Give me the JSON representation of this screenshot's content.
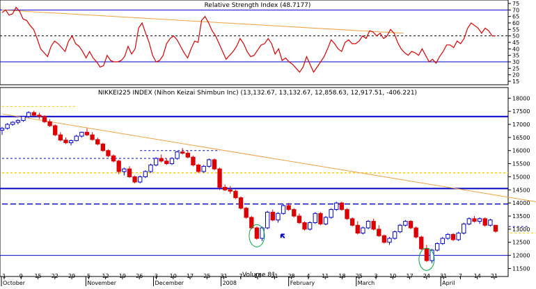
{
  "chart_data": [
    {
      "type": "line",
      "title": "Relative Strength Index (48.7177)",
      "ylim": [
        15,
        75
      ],
      "y_ticks": [
        15,
        20,
        25,
        30,
        35,
        40,
        45,
        50,
        55,
        60,
        65,
        70,
        75
      ],
      "ref_lines": [
        30,
        50,
        70
      ],
      "colors": {
        "series": "#dd0000",
        "ref_solid": "#0000cc",
        "ref_dashed": "#000000",
        "trend": "#f0a040"
      },
      "series": [
        {
          "values": [
            68,
            70,
            66,
            67,
            72,
            69,
            63,
            62,
            58,
            55,
            48,
            40,
            37,
            34,
            42,
            46,
            44,
            41,
            38,
            46,
            50,
            44,
            42,
            38,
            33,
            38,
            33,
            30,
            26,
            27,
            35,
            31,
            30,
            30,
            31,
            34,
            42,
            36,
            40,
            56,
            60,
            52,
            45,
            35,
            30,
            31,
            35,
            44,
            48,
            50,
            47,
            42,
            37,
            33,
            40,
            46,
            45,
            62,
            65,
            60,
            54,
            50,
            44,
            38,
            32,
            35,
            38,
            42,
            48,
            44,
            38,
            34,
            35,
            39,
            43,
            44,
            48,
            44,
            36,
            40,
            31,
            33,
            30,
            28,
            25,
            22,
            26,
            34,
            28,
            22,
            26,
            30,
            34,
            40,
            47,
            44,
            40,
            38,
            45,
            47,
            44,
            44,
            46,
            50,
            48,
            54,
            53,
            50,
            52,
            48,
            50,
            55,
            52,
            45,
            40,
            37,
            35,
            38,
            37,
            35,
            40,
            35,
            30,
            32,
            29,
            34,
            38,
            43,
            43,
            41,
            46,
            44,
            48,
            56,
            60,
            58,
            56,
            52,
            56,
            54,
            50,
            50
          ]
        }
      ],
      "trend_line": {
        "from": [
          0,
          70
        ],
        "to": [
          140,
          52
        ]
      }
    },
    {
      "type": "candlestick",
      "title": "NIKKEI225 INDEX (Nihon Keizai Shimbun Inc) (13,132.67, 13,132.67, 12,858.63, 12,917.51, -406.221)",
      "ylim": [
        11300,
        18300
      ],
      "y_ticks": [
        11500,
        12000,
        12500,
        13000,
        13500,
        14000,
        14500,
        15000,
        15500,
        16000,
        16500,
        17000,
        17500,
        18000
      ],
      "x_day_labels": [
        "1",
        "9",
        "15",
        "22",
        "29",
        "5",
        "12",
        "19",
        "26",
        "3",
        "10",
        "17",
        "25",
        "31",
        "7",
        "14",
        "21",
        "28",
        "4",
        "11",
        "18",
        "25",
        "3",
        "10",
        "17",
        "24",
        "31",
        "7",
        "14",
        "21"
      ],
      "x_month_labels": [
        "October",
        "November",
        "December",
        "2008",
        "February",
        "March",
        "April"
      ],
      "x_overlay_label": "Volume 81",
      "colors": {
        "up": "#0000cc",
        "down": "#dd0000",
        "trend": "#f0a040",
        "support": "#0000cc",
        "dashed_support": "#0000cc",
        "dashed_resistance": "#ffcc00",
        "circle": "#00aa44"
      },
      "support_lines": [
        17300,
        14550,
        12000
      ],
      "dashed_support_lines": [
        {
          "y": 17680,
          "from": 0,
          "to": 14,
          "color": "#ffcc00"
        },
        {
          "y": 16000,
          "from": 26,
          "to": 41,
          "color": "#0000cc"
        },
        {
          "y": 15700,
          "from": 0,
          "to": 31,
          "color": "#0000cc"
        },
        {
          "y": 15150,
          "from": 0,
          "to": 140,
          "color": "#ffcc00"
        },
        {
          "y": 13960,
          "from": 0,
          "to": 96,
          "color": "#0000cc"
        },
        {
          "y": 13100,
          "from": 99,
          "to": 114,
          "color": "#0000cc"
        },
        {
          "y": 12850,
          "from": 119,
          "to": 128,
          "color": "#ffcc00"
        }
      ],
      "trend_line": {
        "from": [
          0,
          17400
        ],
        "to": [
          126,
          13200
        ]
      },
      "candles": [
        {
          "o": 16780,
          "h": 16900,
          "l": 16600,
          "c": 16850
        },
        {
          "o": 16850,
          "h": 17050,
          "l": 16800,
          "c": 17000
        },
        {
          "o": 17000,
          "h": 17120,
          "l": 16950,
          "c": 17080
        },
        {
          "o": 17080,
          "h": 17200,
          "l": 17000,
          "c": 17150
        },
        {
          "o": 17150,
          "h": 17320,
          "l": 17100,
          "c": 17300
        },
        {
          "o": 17300,
          "h": 17500,
          "l": 17250,
          "c": 17450
        },
        {
          "o": 17450,
          "h": 17520,
          "l": 17300,
          "c": 17350
        },
        {
          "o": 17350,
          "h": 17450,
          "l": 17200,
          "c": 17300
        },
        {
          "o": 17300,
          "h": 17350,
          "l": 17050,
          "c": 17100
        },
        {
          "o": 17100,
          "h": 17200,
          "l": 16900,
          "c": 16950
        },
        {
          "o": 16950,
          "h": 17000,
          "l": 16550,
          "c": 16600
        },
        {
          "o": 16600,
          "h": 16700,
          "l": 16350,
          "c": 16400
        },
        {
          "o": 16400,
          "h": 16500,
          "l": 16250,
          "c": 16300
        },
        {
          "o": 16300,
          "h": 16420,
          "l": 16200,
          "c": 16380
        },
        {
          "o": 16380,
          "h": 16600,
          "l": 16350,
          "c": 16550
        },
        {
          "o": 16550,
          "h": 16720,
          "l": 16500,
          "c": 16700
        },
        {
          "o": 16700,
          "h": 16850,
          "l": 16550,
          "c": 16600
        },
        {
          "o": 16600,
          "h": 16700,
          "l": 16380,
          "c": 16420
        },
        {
          "o": 16420,
          "h": 16500,
          "l": 16200,
          "c": 16250
        },
        {
          "o": 16250,
          "h": 16300,
          "l": 15950,
          "c": 16000
        },
        {
          "o": 16000,
          "h": 16050,
          "l": 15750,
          "c": 15800
        },
        {
          "o": 15800,
          "h": 15850,
          "l": 15550,
          "c": 15600
        },
        {
          "o": 15600,
          "h": 15650,
          "l": 15100,
          "c": 15200
        },
        {
          "o": 15200,
          "h": 15350,
          "l": 15050,
          "c": 15300
        },
        {
          "o": 15300,
          "h": 15400,
          "l": 14950,
          "c": 15000
        },
        {
          "o": 15000,
          "h": 15050,
          "l": 14750,
          "c": 14800
        },
        {
          "o": 14800,
          "h": 15050,
          "l": 14750,
          "c": 15000
        },
        {
          "o": 15000,
          "h": 15250,
          "l": 14950,
          "c": 15200
        },
        {
          "o": 15200,
          "h": 15500,
          "l": 15150,
          "c": 15450
        },
        {
          "o": 15450,
          "h": 15750,
          "l": 15400,
          "c": 15700
        },
        {
          "o": 15700,
          "h": 15850,
          "l": 15550,
          "c": 15600
        },
        {
          "o": 15600,
          "h": 15700,
          "l": 15450,
          "c": 15500
        },
        {
          "o": 15500,
          "h": 15750,
          "l": 15450,
          "c": 15700
        },
        {
          "o": 15700,
          "h": 15980,
          "l": 15650,
          "c": 15950
        },
        {
          "o": 15950,
          "h": 16100,
          "l": 15850,
          "c": 15900
        },
        {
          "o": 15900,
          "h": 16000,
          "l": 15700,
          "c": 15750
        },
        {
          "o": 15750,
          "h": 15800,
          "l": 15400,
          "c": 15450
        },
        {
          "o": 15450,
          "h": 15500,
          "l": 15150,
          "c": 15200
        },
        {
          "o": 15200,
          "h": 15450,
          "l": 15150,
          "c": 15400
        },
        {
          "o": 15400,
          "h": 15700,
          "l": 15350,
          "c": 15650
        },
        {
          "o": 15650,
          "h": 15700,
          "l": 15250,
          "c": 15300
        },
        {
          "o": 15300,
          "h": 15350,
          "l": 14500,
          "c": 14600
        },
        {
          "o": 14600,
          "h": 14700,
          "l": 14450,
          "c": 14500
        },
        {
          "o": 14500,
          "h": 14650,
          "l": 14350,
          "c": 14450
        },
        {
          "o": 14450,
          "h": 14500,
          "l": 14150,
          "c": 14200
        },
        {
          "o": 14200,
          "h": 14250,
          "l": 13750,
          "c": 13800
        },
        {
          "o": 13800,
          "h": 13850,
          "l": 13400,
          "c": 13450
        },
        {
          "o": 13450,
          "h": 13500,
          "l": 13000,
          "c": 13050
        },
        {
          "o": 13050,
          "h": 13100,
          "l": 12600,
          "c": 12650
        },
        {
          "o": 12650,
          "h": 13100,
          "l": 12550,
          "c": 13050
        },
        {
          "o": 13050,
          "h": 13700,
          "l": 13000,
          "c": 13650
        },
        {
          "o": 13650,
          "h": 13750,
          "l": 13300,
          "c": 13350
        },
        {
          "o": 13350,
          "h": 13650,
          "l": 13250,
          "c": 13600
        },
        {
          "o": 13600,
          "h": 13950,
          "l": 13550,
          "c": 13900
        },
        {
          "o": 13900,
          "h": 14000,
          "l": 13700,
          "c": 13750
        },
        {
          "o": 13750,
          "h": 13800,
          "l": 13450,
          "c": 13500
        },
        {
          "o": 13500,
          "h": 13600,
          "l": 13200,
          "c": 13250
        },
        {
          "o": 13250,
          "h": 13300,
          "l": 12950,
          "c": 13000
        },
        {
          "o": 13000,
          "h": 13300,
          "l": 12950,
          "c": 13250
        },
        {
          "o": 13250,
          "h": 13650,
          "l": 13200,
          "c": 13600
        },
        {
          "o": 13600,
          "h": 13650,
          "l": 13150,
          "c": 13200
        },
        {
          "o": 13200,
          "h": 13500,
          "l": 13150,
          "c": 13450
        },
        {
          "o": 13450,
          "h": 13800,
          "l": 13400,
          "c": 13750
        },
        {
          "o": 13750,
          "h": 14050,
          "l": 13700,
          "c": 14000
        },
        {
          "o": 14000,
          "h": 14050,
          "l": 13700,
          "c": 13750
        },
        {
          "o": 13750,
          "h": 13800,
          "l": 13350,
          "c": 13400
        },
        {
          "o": 13400,
          "h": 13450,
          "l": 13100,
          "c": 13150
        },
        {
          "o": 13150,
          "h": 13300,
          "l": 12800,
          "c": 12850
        },
        {
          "o": 12850,
          "h": 13100,
          "l": 12800,
          "c": 13050
        },
        {
          "o": 13050,
          "h": 13350,
          "l": 13000,
          "c": 13300
        },
        {
          "o": 13300,
          "h": 13400,
          "l": 12950,
          "c": 13000
        },
        {
          "o": 13000,
          "h": 13150,
          "l": 12700,
          "c": 12750
        },
        {
          "o": 12750,
          "h": 12800,
          "l": 12450,
          "c": 12500
        },
        {
          "o": 12500,
          "h": 12700,
          "l": 12400,
          "c": 12650
        },
        {
          "o": 12650,
          "h": 12950,
          "l": 12600,
          "c": 12900
        },
        {
          "o": 12900,
          "h": 13200,
          "l": 12850,
          "c": 13150
        },
        {
          "o": 13150,
          "h": 13350,
          "l": 13100,
          "c": 13300
        },
        {
          "o": 13300,
          "h": 13350,
          "l": 13000,
          "c": 13050
        },
        {
          "o": 13050,
          "h": 13100,
          "l": 12650,
          "c": 12700
        },
        {
          "o": 12700,
          "h": 12750,
          "l": 12200,
          "c": 12250
        },
        {
          "o": 12250,
          "h": 12400,
          "l": 11750,
          "c": 11800
        },
        {
          "o": 11800,
          "h": 12250,
          "l": 11700,
          "c": 12200
        },
        {
          "o": 12200,
          "h": 12500,
          "l": 12150,
          "c": 12450
        },
        {
          "o": 12450,
          "h": 12700,
          "l": 12400,
          "c": 12650
        },
        {
          "o": 12650,
          "h": 12850,
          "l": 12600,
          "c": 12800
        },
        {
          "o": 12800,
          "h": 12850,
          "l": 12550,
          "c": 12600
        },
        {
          "o": 12600,
          "h": 12900,
          "l": 12550,
          "c": 12850
        },
        {
          "o": 12850,
          "h": 13250,
          "l": 12800,
          "c": 13200
        },
        {
          "o": 13200,
          "h": 13450,
          "l": 13150,
          "c": 13400
        },
        {
          "o": 13400,
          "h": 13500,
          "l": 13250,
          "c": 13300
        },
        {
          "o": 13300,
          "h": 13450,
          "l": 13200,
          "c": 13400
        },
        {
          "o": 13400,
          "h": 13450,
          "l": 13100,
          "c": 13150
        },
        {
          "o": 13150,
          "h": 13400,
          "l": 13100,
          "c": 13350
        },
        {
          "o": 13150,
          "h": 13150,
          "l": 12860,
          "c": 12920
        }
      ]
    }
  ],
  "annotations": {
    "arrow": {
      "at_candle": 51,
      "value": 12800,
      "color": "#0000cc"
    },
    "circles": [
      {
        "at_candle": 48,
        "value": 12750
      },
      {
        "at_candle": 80,
        "value": 11850
      }
    ]
  }
}
